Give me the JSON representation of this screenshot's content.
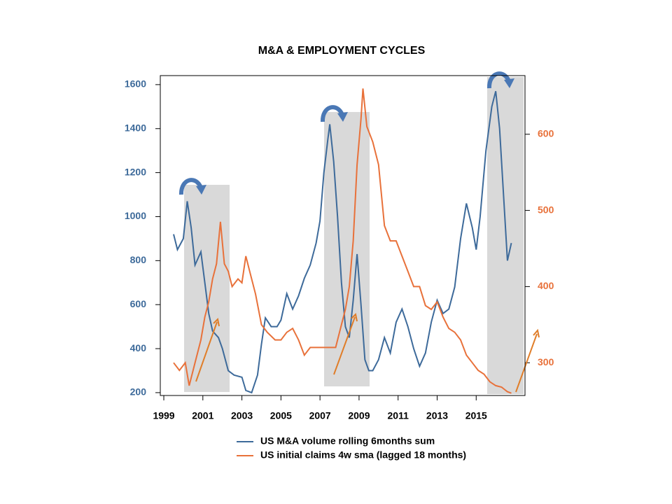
{
  "chart_data": {
    "type": "line",
    "title": "M&A & EMPLOYMENT CYCLES",
    "xlim": [
      1998.82,
      2017.5
    ],
    "xticks": [
      1999,
      2001,
      2003,
      2005,
      2007,
      2009,
      2011,
      2013,
      2015
    ],
    "ylim": [
      187,
      1641
    ],
    "yticks": [
      200,
      400,
      600,
      800,
      1000,
      1200,
      1400,
      1600
    ],
    "y2lim": [
      257,
      677
    ],
    "y2ticks": [
      300,
      400,
      500,
      600
    ],
    "series": [
      {
        "name": "US M&A volume rolling 6months sum",
        "color": "#3d6a9a",
        "x": [
          1999.5,
          1999.7,
          2000.0,
          2000.2,
          2000.4,
          2000.6,
          2000.9,
          2001.1,
          2001.3,
          2001.5,
          2001.8,
          2002.0,
          2002.3,
          2002.6,
          2003.0,
          2003.2,
          2003.5,
          2003.8,
          2004.0,
          2004.2,
          2004.5,
          2004.8,
          2005.0,
          2005.3,
          2005.6,
          2005.9,
          2006.2,
          2006.5,
          2006.8,
          2007.0,
          2007.2,
          2007.4,
          2007.5,
          2007.7,
          2007.9,
          2008.1,
          2008.3,
          2008.5,
          2008.7,
          2008.9,
          2009.1,
          2009.3,
          2009.5,
          2009.7,
          2010.0,
          2010.3,
          2010.6,
          2010.9,
          2011.2,
          2011.5,
          2011.8,
          2012.1,
          2012.4,
          2012.7,
          2013.0,
          2013.3,
          2013.6,
          2013.9,
          2014.2,
          2014.5,
          2014.8,
          2015.0,
          2015.2,
          2015.5,
          2015.8,
          2016.0,
          2016.2,
          2016.4,
          2016.6,
          2016.8
        ],
        "values": [
          920,
          850,
          900,
          1070,
          950,
          780,
          840,
          700,
          560,
          480,
          450,
          400,
          300,
          280,
          270,
          210,
          200,
          280,
          420,
          540,
          500,
          500,
          530,
          650,
          580,
          640,
          720,
          780,
          880,
          980,
          1200,
          1350,
          1420,
          1250,
          1000,
          700,
          500,
          450,
          620,
          830,
          600,
          350,
          300,
          300,
          350,
          450,
          380,
          520,
          580,
          500,
          400,
          320,
          380,
          520,
          620,
          560,
          580,
          680,
          900,
          1060,
          950,
          850,
          1000,
          1300,
          1500,
          1570,
          1400,
          1100,
          800,
          880
        ]
      },
      {
        "name": "US initial claims 4w sma (lagged 18 months)",
        "color": "#e8713a",
        "axis": "y2",
        "x": [
          1999.5,
          1999.8,
          2000.1,
          2000.3,
          2000.6,
          2000.9,
          2001.1,
          2001.3,
          2001.5,
          2001.7,
          2001.9,
          2002.1,
          2002.3,
          2002.5,
          2002.8,
          2003.0,
          2003.2,
          2003.4,
          2003.7,
          2004.0,
          2004.3,
          2004.7,
          2005.0,
          2005.3,
          2005.6,
          2005.9,
          2006.2,
          2006.5,
          2006.8,
          2007.2,
          2007.5,
          2007.8,
          2008.0,
          2008.3,
          2008.5,
          2008.7,
          2008.9,
          2009.1,
          2009.2,
          2009.4,
          2009.7,
          2010.0,
          2010.3,
          2010.6,
          2010.9,
          2011.2,
          2011.5,
          2011.8,
          2012.1,
          2012.4,
          2012.7,
          2013.0,
          2013.3,
          2013.6,
          2013.9,
          2014.2,
          2014.5,
          2014.8,
          2015.1,
          2015.4,
          2015.7,
          2016.0,
          2016.3,
          2016.6,
          2016.8
        ],
        "values": [
          300,
          290,
          300,
          270,
          300,
          330,
          360,
          380,
          410,
          430,
          485,
          430,
          420,
          400,
          410,
          405,
          440,
          420,
          390,
          350,
          340,
          330,
          330,
          340,
          345,
          330,
          310,
          320,
          320,
          320,
          320,
          320,
          340,
          370,
          400,
          460,
          560,
          620,
          660,
          610,
          590,
          560,
          480,
          460,
          460,
          440,
          420,
          400,
          400,
          375,
          370,
          380,
          360,
          345,
          340,
          330,
          310,
          300,
          290,
          285,
          275,
          270,
          268,
          262,
          260
        ]
      }
    ]
  }
}
